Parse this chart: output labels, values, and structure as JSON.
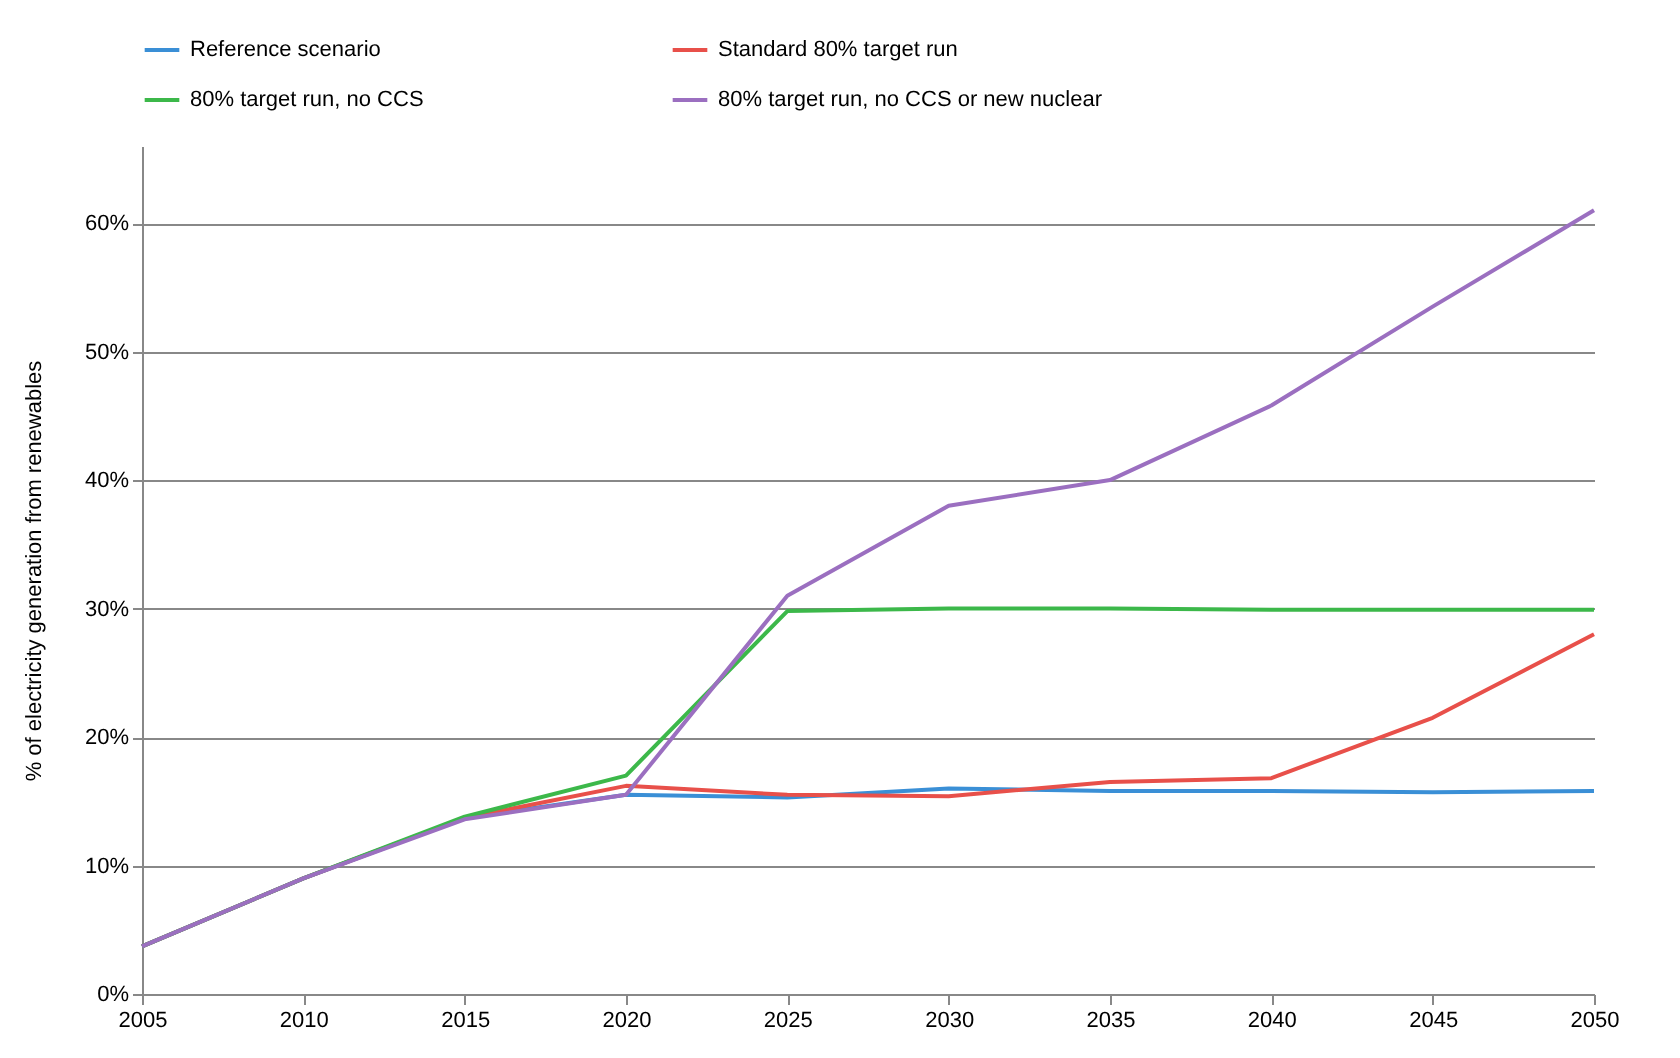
{
  "chart_data": {
    "type": "line",
    "ylabel": "% of electricity generation from renewables",
    "x": [
      2005,
      2010,
      2015,
      2020,
      2025,
      2030,
      2035,
      2040,
      2045,
      2050
    ],
    "xlim": [
      2005,
      2050
    ],
    "xticks": [
      2005,
      2010,
      2015,
      2020,
      2025,
      2030,
      2035,
      2040,
      2045,
      2050
    ],
    "ylim": [
      0,
      66
    ],
    "yticks": [
      {
        "value": 0,
        "label": "0%"
      },
      {
        "value": 10,
        "label": "10%"
      },
      {
        "value": 20,
        "label": "20%"
      },
      {
        "value": 30,
        "label": "30%"
      },
      {
        "value": 40,
        "label": "40%"
      },
      {
        "value": 50,
        "label": "50%"
      },
      {
        "value": 60,
        "label": "60%"
      }
    ],
    "grid": "y",
    "legend": "top",
    "marker": "none",
    "line_style": "solid",
    "series": [
      {
        "name": "Reference scenario",
        "color": "#3a8fd6",
        "values": [
          3.7,
          9,
          13.7,
          15.5,
          15.3,
          16,
          15.8,
          15.8,
          15.7,
          15.8
        ]
      },
      {
        "name": "Standard 80% target run",
        "color": "#e8504a",
        "values": [
          3.7,
          9,
          13.7,
          16.2,
          15.5,
          15.4,
          16.5,
          16.8,
          21.5,
          28
        ]
      },
      {
        "name": "80% target run, no CCS",
        "color": "#3cb84a",
        "values": [
          3.7,
          9,
          13.8,
          17,
          29.8,
          30,
          30,
          29.9,
          29.9,
          29.9
        ]
      },
      {
        "name": "80% target run, no CCS or new nuclear",
        "color": "#9b6fc0",
        "values": [
          3.7,
          9,
          13.6,
          15.5,
          31,
          38,
          40,
          45.8,
          53.5,
          61
        ]
      }
    ]
  }
}
